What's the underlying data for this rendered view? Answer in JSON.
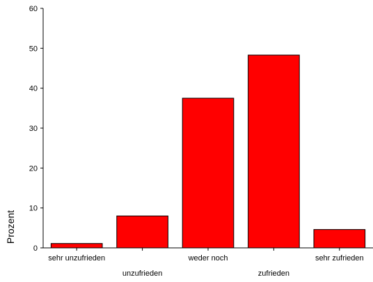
{
  "chart_data": {
    "type": "bar",
    "categories": [
      "sehr unzufrieden",
      "unzufrieden",
      "weder noch",
      "zufrieden",
      "sehr zufrieden"
    ],
    "values": [
      1.1,
      8.0,
      37.5,
      48.3,
      4.6
    ],
    "title": "",
    "xlabel": "",
    "ylabel": "Prozent",
    "ylim": [
      0,
      60
    ],
    "yticks": [
      0,
      10,
      20,
      30,
      40,
      50,
      60
    ],
    "grid": false,
    "legend": "none",
    "bar_color": "#ff0000",
    "bar_outline_color": "#000000"
  }
}
